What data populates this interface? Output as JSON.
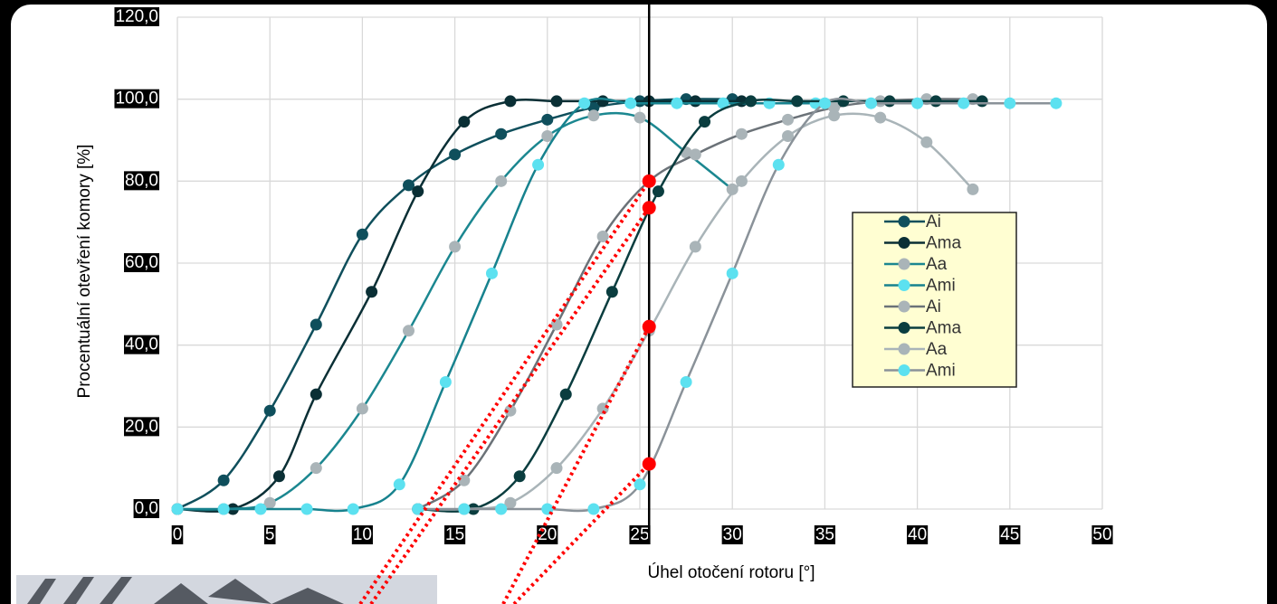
{
  "chart_data": {
    "type": "line",
    "x_label": "Úhel otočení rotoru [°]",
    "y_label": "Procentuální otevření komory [%]",
    "xlim": [
      0,
      50
    ],
    "xticks": [
      0,
      5,
      10,
      15,
      20,
      25,
      30,
      35,
      40,
      45,
      50
    ],
    "ylim": [
      0,
      120
    ],
    "yticks": [
      {
        "value": 0,
        "label": "0,0"
      },
      {
        "value": 20,
        "label": "20,0"
      },
      {
        "value": 40,
        "label": "40,0"
      },
      {
        "value": 60,
        "label": "60,0"
      },
      {
        "value": 80,
        "label": "80,0"
      },
      {
        "value": 100,
        "label": "100,0"
      },
      {
        "value": 120,
        "label": "120,0"
      }
    ],
    "grid": true,
    "legend": true,
    "series": [
      {
        "name": "Ai",
        "color": "#0f4f5c",
        "marker_color": "#0f4f5c",
        "x": [
          0,
          2.5,
          5,
          7.5,
          10,
          12.5,
          15,
          17.5,
          20,
          22.5,
          25,
          27.5,
          30
        ],
        "values": [
          0,
          7,
          24,
          45,
          67,
          79,
          86.5,
          91.5,
          95,
          98,
          99.5,
          100,
          100
        ]
      },
      {
        "name": "Ama",
        "color": "#0a2f35",
        "marker_color": "#0a2f35",
        "x": [
          0,
          3,
          5.5,
          7.5,
          10.5,
          13,
          15.5,
          18,
          20.5,
          23,
          25.5,
          28,
          30.5
        ],
        "values": [
          0,
          0,
          8,
          28,
          53,
          77.5,
          94.5,
          99.5,
          99.5,
          99.5,
          99.5,
          99.5,
          99.5
        ]
      },
      {
        "name": "Aa",
        "color": "#1b8790",
        "marker_color": "#aab4b8",
        "x": [
          0,
          2.5,
          5,
          7.5,
          10,
          12.5,
          15,
          17.5,
          20,
          22.5,
          25,
          27.5,
          30
        ],
        "values": [
          0,
          0,
          1.5,
          10,
          24.5,
          43.5,
          64,
          80,
          91,
          96,
          95.5,
          87,
          78
        ]
      },
      {
        "name": "Ami",
        "color": "#17828e",
        "marker_color": "#5ce1f0",
        "x": [
          0,
          2.5,
          4.5,
          7,
          9.5,
          12,
          14.5,
          17,
          19.5,
          22,
          24.5,
          27,
          29.5,
          32,
          34.5
        ],
        "values": [
          0,
          0,
          0,
          0,
          0,
          6,
          31,
          57.5,
          84,
          99,
          99,
          99,
          99,
          99,
          99
        ]
      },
      {
        "name": "Ai",
        "color": "#6b7278",
        "marker_color": "#aab4b8",
        "x": [
          13,
          15.5,
          18,
          20.5,
          23,
          25.5,
          28,
          30.5,
          33,
          35.5,
          38,
          40.5,
          43
        ],
        "values": [
          0,
          7,
          24,
          45,
          66.5,
          80,
          86.5,
          91.5,
          95,
          98,
          99.5,
          100,
          100
        ]
      },
      {
        "name": "Ama",
        "color": "#0a3d3f",
        "marker_color": "#0a3d3f",
        "x": [
          13,
          16,
          18.5,
          21,
          23.5,
          26,
          28.5,
          31,
          33.5,
          36,
          38.5,
          41,
          43.5
        ],
        "values": [
          0,
          0,
          8,
          28,
          53,
          77.5,
          94.5,
          99.5,
          99.5,
          99.5,
          99.5,
          99.5,
          99.5
        ]
      },
      {
        "name": "Aa",
        "color": "#a9b4b8",
        "marker_color": "#a9b4b8",
        "x": [
          13,
          15.5,
          18,
          20.5,
          23,
          25.5,
          28,
          30.5,
          33,
          35.5,
          38,
          40.5,
          43
        ],
        "values": [
          0,
          0,
          1.5,
          10,
          24.5,
          43.5,
          64,
          80,
          91,
          96,
          95.5,
          89.5,
          78
        ]
      },
      {
        "name": "Ami",
        "color": "#8a9299",
        "marker_color": "#5ce1f0",
        "x": [
          13,
          15.5,
          17.5,
          20,
          22.5,
          25,
          27.5,
          30,
          32.5,
          35,
          37.5,
          40,
          42.5,
          45,
          47.5
        ],
        "values": [
          0,
          0,
          0,
          0,
          0,
          6,
          31,
          57.5,
          84,
          99,
          99,
          99,
          99,
          99,
          99
        ]
      }
    ],
    "marker_line_x": 25.5,
    "highlight": {
      "color": "#ff0000",
      "x": [
        25.5,
        25.5,
        25.5,
        25.5
      ],
      "values": [
        80,
        73.5,
        44.5,
        11
      ]
    }
  }
}
